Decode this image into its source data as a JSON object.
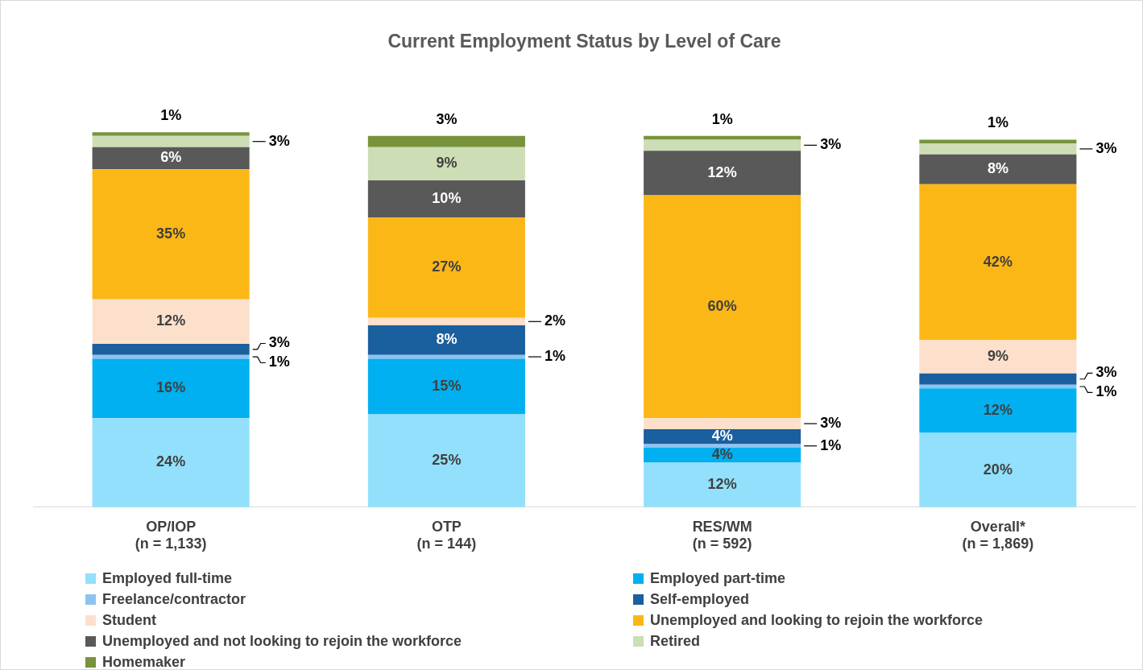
{
  "chart_data": {
    "type": "bar",
    "stacked": true,
    "title": "Current Employment Status by Level of Care",
    "categories": [
      "OP/IOP\n(n = 1,133)",
      "OTP\n(n = 144)",
      "RES/WM\n(n = 592)",
      "Overall*\n(n = 1,869)"
    ],
    "series": [
      {
        "name": "Employed full-time",
        "color": "#92e0fb",
        "values": [
          24,
          25,
          12,
          20
        ],
        "value_labels": [
          "24%",
          "25%",
          "12%",
          "20%"
        ]
      },
      {
        "name": "Employed part-time",
        "color": "#00b0f0",
        "values": [
          16,
          15,
          4,
          12
        ],
        "value_labels": [
          "16%",
          "15%",
          "4%",
          "12%"
        ]
      },
      {
        "name": "Freelance/contractor",
        "color": "#8dc3f1",
        "values": [
          1,
          1,
          1,
          1
        ],
        "value_labels": [
          "1%",
          "1%",
          "1%",
          "1%"
        ]
      },
      {
        "name": "Self-employed",
        "color": "#1a5f9e",
        "values": [
          3,
          8,
          4,
          3
        ],
        "value_labels": [
          "3%",
          "8%",
          "4%",
          "3%"
        ]
      },
      {
        "name": "Student",
        "color": "#fde0cc",
        "values": [
          12,
          2,
          3,
          9
        ],
        "value_labels": [
          "12%",
          "2%",
          "3%",
          "9%"
        ]
      },
      {
        "name": "Unemployed and looking to rejoin the workforce",
        "color": "#fbb716",
        "values": [
          35,
          27,
          60,
          42
        ],
        "value_labels": [
          "35%",
          "27%",
          "60%",
          "42%"
        ]
      },
      {
        "name": "Unemployed and not looking to rejoin the workforce",
        "color": "#595959",
        "values": [
          6,
          10,
          12,
          8
        ],
        "value_labels": [
          "6%",
          "10%",
          "12%",
          "8%"
        ]
      },
      {
        "name": "Retired",
        "color": "#cdddb5",
        "values": [
          3,
          9,
          3,
          3
        ],
        "value_labels": [
          "3%",
          "9%",
          "3%",
          "3%"
        ]
      },
      {
        "name": "Homemaker",
        "color": "#77933c",
        "values": [
          1,
          3,
          1,
          1
        ],
        "value_labels": [
          "1%",
          "3%",
          "1%",
          "1%"
        ]
      }
    ],
    "tick_labels": "x",
    "legend": "bottom",
    "grid": false
  }
}
